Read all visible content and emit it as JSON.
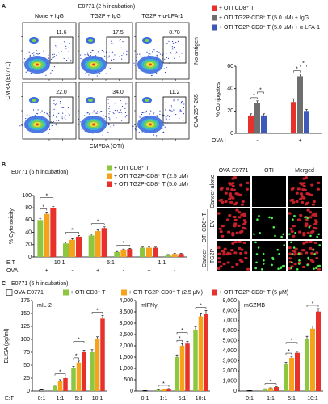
{
  "panel_labels": [
    "A",
    "B",
    "C"
  ],
  "panel_a": {
    "title": "E0771 (2 h incubation)",
    "columns": [
      "None + IgG",
      "TG2P + IgG",
      "TG2P + α-LFA-1"
    ],
    "rows": [
      "No antigen",
      "OVA 257-265"
    ],
    "gate_values": [
      [
        "11.6",
        "17.5",
        "8.78"
      ],
      [
        "22.0",
        "34.0",
        "11.2"
      ]
    ],
    "y_label": "CMRA (E0771)",
    "x_label": "CMFDA (OTI)"
  },
  "panel_b_images": {
    "columns": [
      "OVA-E0771",
      "OTI",
      "Merged"
    ],
    "rows": [
      "Cancer alone",
      "EV",
      "TG2P"
    ],
    "group_label": "Cancer + OTI CD8⁺ T"
  },
  "panel_c": {
    "title": "E0771 (6 h incubation)"
  },
  "chart_data": [
    {
      "type": "bar",
      "categories": [
        "-",
        "+"
      ],
      "x_label": "OVA :",
      "y_label": "% Conjugates",
      "ylim": [
        0,
        60
      ],
      "yticks": [
        0,
        20,
        40,
        60
      ],
      "series": [
        {
          "name": "+ OTI CD8⁺ T",
          "color": "#e8312a",
          "values": [
            16,
            28
          ],
          "errors": [
            1.5,
            3
          ]
        },
        {
          "name": "+ OTI TG2P-CD8⁺ T (5.0 μM) + IgG",
          "color": "#6d6e70",
          "values": [
            27,
            51
          ],
          "errors": [
            2,
            2
          ]
        },
        {
          "name": "+ OTI TG2P-CD8⁺ T (5.0 μM) + α-LFA-1",
          "color": "#3d5ab8",
          "values": [
            16,
            20
          ],
          "errors": [
            1.5,
            1.5
          ]
        }
      ],
      "annotations": [
        "*",
        "*",
        "*",
        "*"
      ]
    },
    {
      "type": "bar",
      "title": "E0771 (6 h incubation)",
      "categories": [
        "+",
        "-",
        "+",
        "-",
        "+",
        "-"
      ],
      "groups": [
        "10:1",
        "5:1",
        "1:1"
      ],
      "x_label": "E:T",
      "category_label": "OVA",
      "y_label": "% Cytotoxicity",
      "ylim": [
        0,
        100
      ],
      "yticks": [
        0,
        20,
        40,
        60,
        80,
        100
      ],
      "series": [
        {
          "name": "+ OTI CD8⁺ T",
          "color": "#8dc63f",
          "values": [
            60,
            22,
            35,
            8,
            15,
            3
          ],
          "errors": [
            3,
            2,
            2,
            1,
            1,
            1
          ]
        },
        {
          "name": "+ OTI TG2P-CD8⁺ T (2.5 μM)",
          "color": "#f7a21b",
          "values": [
            70,
            28,
            42,
            12,
            15,
            5
          ],
          "errors": [
            3,
            2,
            2,
            1,
            1,
            1
          ]
        },
        {
          "name": "+ OTI TG2P-CD8⁺ T (5.0 μM)",
          "color": "#e8312a",
          "values": [
            80,
            33,
            47,
            13,
            15,
            5
          ],
          "errors": [
            2,
            2,
            2,
            1,
            1,
            1
          ]
        }
      ],
      "annotations": [
        "*",
        "*",
        "*",
        "*",
        "*"
      ]
    },
    {
      "type": "bar",
      "title": "mIL-2",
      "categories": [
        "0:1",
        "1:1",
        "5:1",
        "10:1"
      ],
      "x_label": "E:T",
      "y_label": "ELISA (pg/ml)",
      "ylim": [
        0,
        175
      ],
      "yticks": [
        0,
        25,
        50,
        75,
        100,
        125,
        150,
        175
      ],
      "series": [
        {
          "name": "OVA-E0771",
          "color": "#ffffff",
          "values": [
            2,
            null,
            null,
            null
          ],
          "errors": [
            0.5,
            null,
            null,
            null
          ]
        },
        {
          "name": "+ OTI CD8⁺ T",
          "color": "#8dc63f",
          "values": [
            null,
            10,
            45,
            75
          ],
          "errors": [
            null,
            2,
            3,
            5
          ]
        },
        {
          "name": "+ OTI TG2P-CD8⁺ T (2.5 μM)",
          "color": "#f7a21b",
          "values": [
            null,
            20,
            55,
            100
          ],
          "errors": [
            null,
            2,
            3,
            5
          ]
        },
        {
          "name": "+ OTI TG2P-CD8⁺ T (5 μM)",
          "color": "#e8312a",
          "values": [
            null,
            25,
            75,
            140
          ],
          "errors": [
            null,
            2,
            4,
            6
          ]
        }
      ],
      "annotations": [
        "*",
        "*",
        "*",
        "*"
      ]
    },
    {
      "type": "bar",
      "title": "mIFNγ",
      "categories": [
        "0:1",
        "1:1",
        "5:1",
        "10:1"
      ],
      "ylim": [
        0,
        4000
      ],
      "yticks": [
        0,
        500,
        {
          "value": 1000,
          "label": "1,000"
        },
        {
          "value": 1500,
          "label": "1,500"
        },
        {
          "value": 2000,
          "label": "2,000"
        },
        {
          "value": 2500,
          "label": "2,500"
        },
        {
          "value": 3000,
          "label": "3,000"
        },
        {
          "value": 3500,
          "label": "3,500"
        },
        {
          "value": 4000,
          "label": "4,000"
        }
      ],
      "series": [
        {
          "color": "#ffffff",
          "values": [
            20,
            null,
            null,
            null
          ],
          "errors": [
            5,
            null,
            null,
            null
          ]
        },
        {
          "color": "#8dc63f",
          "values": [
            null,
            50,
            1500,
            2700
          ],
          "errors": [
            null,
            10,
            100,
            150
          ]
        },
        {
          "color": "#f7a21b",
          "values": [
            null,
            80,
            2000,
            3300
          ],
          "errors": [
            null,
            10,
            100,
            150
          ]
        },
        {
          "color": "#e8312a",
          "values": [
            null,
            100,
            2100,
            3400
          ],
          "errors": [
            null,
            10,
            100,
            150
          ]
        }
      ],
      "annotations": [
        "*",
        "*",
        "*",
        "*"
      ]
    },
    {
      "type": "bar",
      "title": "mGZMB",
      "categories": [
        "0:1",
        "1:1",
        "5:1",
        "10:1"
      ],
      "ylim": [
        0,
        9000
      ],
      "yticks": [
        0,
        {
          "value": 1000,
          "label": "1,000"
        },
        {
          "value": 2000,
          "label": "2,000"
        },
        {
          "value": 3000,
          "label": "3,000"
        },
        {
          "value": 4000,
          "label": "4,000"
        },
        {
          "value": 5000,
          "label": "5,000"
        },
        {
          "value": 6000,
          "label": "6,000"
        },
        {
          "value": 7000,
          "label": "7,000"
        },
        {
          "value": 8000,
          "label": "8,000"
        },
        {
          "value": 9000,
          "label": "9,000"
        }
      ],
      "series": [
        {
          "color": "#ffffff",
          "values": [
            50,
            null,
            null,
            null
          ],
          "errors": [
            10,
            null,
            null,
            null
          ]
        },
        {
          "color": "#8dc63f",
          "values": [
            null,
            200,
            2700,
            5200
          ],
          "errors": [
            null,
            30,
            150,
            250
          ]
        },
        {
          "color": "#f7a21b",
          "values": [
            null,
            300,
            3300,
            6200
          ],
          "errors": [
            null,
            30,
            150,
            250
          ]
        },
        {
          "color": "#e8312a",
          "values": [
            null,
            400,
            3800,
            7900
          ],
          "errors": [
            null,
            30,
            150,
            300
          ]
        }
      ],
      "annotations": [
        "*",
        "*",
        "*",
        "*"
      ]
    }
  ]
}
